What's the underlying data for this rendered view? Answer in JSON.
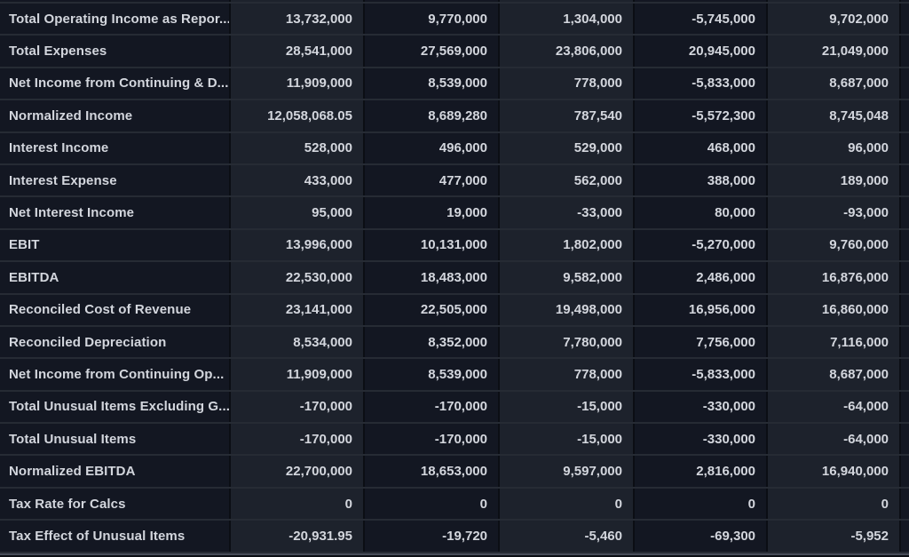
{
  "colors": {
    "background": "#0b0e14",
    "cell_dark": "#131722",
    "cell_light": "#1d222c",
    "row_border": "#262b34",
    "column_border": "#0b0e14",
    "text": "#d3d6dd",
    "scrollbar": "#474c58"
  },
  "table": {
    "type": "financial-statement-table",
    "rows": [
      {
        "label": "Total Operating Income as Repor...",
        "values": [
          "13,732,000",
          "9,770,000",
          "1,304,000",
          "-5,745,000",
          "9,702,000"
        ]
      },
      {
        "label": "Total Expenses",
        "values": [
          "28,541,000",
          "27,569,000",
          "23,806,000",
          "20,945,000",
          "21,049,000"
        ]
      },
      {
        "label": "Net Income from Continuing & D...",
        "values": [
          "11,909,000",
          "8,539,000",
          "778,000",
          "-5,833,000",
          "8,687,000"
        ]
      },
      {
        "label": "Normalized Income",
        "values": [
          "12,058,068.05",
          "8,689,280",
          "787,540",
          "-5,572,300",
          "8,745,048"
        ]
      },
      {
        "label": "Interest Income",
        "values": [
          "528,000",
          "496,000",
          "529,000",
          "468,000",
          "96,000"
        ]
      },
      {
        "label": "Interest Expense",
        "values": [
          "433,000",
          "477,000",
          "562,000",
          "388,000",
          "189,000"
        ]
      },
      {
        "label": "Net Interest Income",
        "values": [
          "95,000",
          "19,000",
          "-33,000",
          "80,000",
          "-93,000"
        ]
      },
      {
        "label": "EBIT",
        "values": [
          "13,996,000",
          "10,131,000",
          "1,802,000",
          "-5,270,000",
          "9,760,000"
        ]
      },
      {
        "label": "EBITDA",
        "values": [
          "22,530,000",
          "18,483,000",
          "9,582,000",
          "2,486,000",
          "16,876,000"
        ]
      },
      {
        "label": "Reconciled Cost of Revenue",
        "values": [
          "23,141,000",
          "22,505,000",
          "19,498,000",
          "16,956,000",
          "16,860,000"
        ]
      },
      {
        "label": "Reconciled Depreciation",
        "values": [
          "8,534,000",
          "8,352,000",
          "7,780,000",
          "7,756,000",
          "7,116,000"
        ]
      },
      {
        "label": "Net Income from Continuing Op...",
        "values": [
          "11,909,000",
          "8,539,000",
          "778,000",
          "-5,833,000",
          "8,687,000"
        ]
      },
      {
        "label": "Total Unusual Items Excluding G...",
        "values": [
          "-170,000",
          "-170,000",
          "-15,000",
          "-330,000",
          "-64,000"
        ]
      },
      {
        "label": "Total Unusual Items",
        "values": [
          "-170,000",
          "-170,000",
          "-15,000",
          "-330,000",
          "-64,000"
        ]
      },
      {
        "label": "Normalized EBITDA",
        "values": [
          "22,700,000",
          "18,653,000",
          "9,597,000",
          "2,816,000",
          "16,940,000"
        ]
      },
      {
        "label": "Tax Rate for Calcs",
        "values": [
          "0",
          "0",
          "0",
          "0",
          "0"
        ]
      },
      {
        "label": "Tax Effect of Unusual Items",
        "values": [
          "-20,931.95",
          "-19,720",
          "-5,460",
          "-69,300",
          "-5,952"
        ]
      }
    ]
  }
}
